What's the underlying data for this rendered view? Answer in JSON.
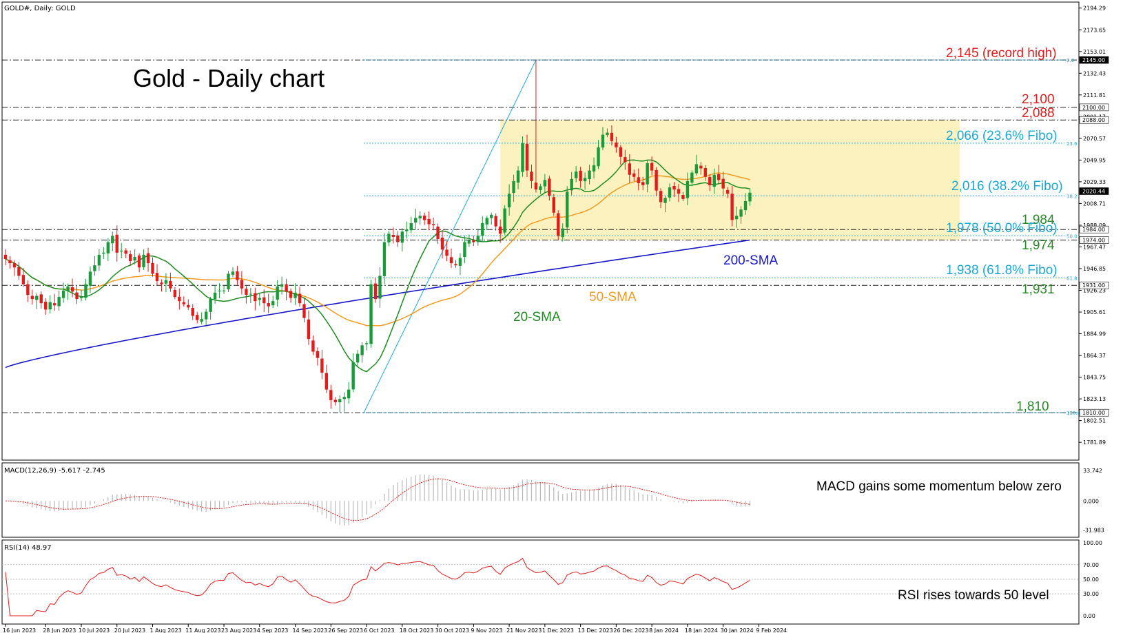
{
  "header": {
    "symbol_line": "GOLD#, Daily: GOLD",
    "macd_line": "MACD(12,26,9) -5.617 -2.745",
    "rsi_line": "RSI(14) 48.97"
  },
  "annotations": {
    "title": "Gold - Daily chart",
    "record_high": "2,145 (record high)",
    "level_2100": "2,100",
    "level_2088": "2,088",
    "fibo_236": "2,066 (23.6% Fibo)",
    "fibo_382": "2,016 (38.2% Fibo)",
    "level_1984": "1,984",
    "fibo_500": "1,978 (50.0% Fibo)",
    "level_1974": "1,974",
    "sma200": "200-SMA",
    "fibo_618": "1,938 (61.8% Fibo)",
    "level_1931": "1,931",
    "sma50": "50-SMA",
    "sma20": "20-SMA",
    "level_1810": "1,810",
    "macd_note": "MACD gains some momentum below zero",
    "rsi_note": "RSI rises towards 50 level"
  },
  "fib_tags": [
    "0.0",
    "23.6",
    "38.2",
    "50.0",
    "61.8",
    "100.0"
  ],
  "colors": {
    "bull": "#1a9a3a",
    "bear": "#e21b1b",
    "sma20": "#1e8b1e",
    "sma50": "#f39a1e",
    "sma200": "#1818c8",
    "fibo": "#1aa9d6",
    "zone": "#fbf2c0",
    "red_label": "#e21b1b",
    "green_label": "#2a8a2a",
    "cyan_label": "#1aa9d6",
    "blue_label": "#1818c8"
  },
  "chart_data": {
    "type": "candlestick",
    "price_axis": {
      "ylim": [
        1765,
        2200
      ],
      "ticks": [
        "2194.29",
        "2173.65",
        "2153.01",
        "2132.43",
        "2111.81",
        "2091.17",
        "2070.57",
        "2049.95",
        "2029.33",
        "2008.71",
        "1988.09",
        "1967.47",
        "1946.85",
        "1926.23",
        "1905.61",
        "1884.99",
        "1864.37",
        "1843.75",
        "1823.13",
        "1802.51",
        "1781.89"
      ],
      "flagged": [
        {
          "value": 2145,
          "label": "2145.00",
          "style": "dark"
        },
        {
          "value": 2100,
          "label": "2100.00",
          "style": "light"
        },
        {
          "value": 2088,
          "label": "2088.00",
          "style": "light"
        },
        {
          "value": 2020.44,
          "label": "2020.44",
          "style": "dark"
        },
        {
          "value": 1984,
          "label": "1984.00",
          "style": "light"
        },
        {
          "value": 1974,
          "label": "1974.00",
          "style": "light"
        },
        {
          "value": 1931,
          "label": "1931.00",
          "style": "light"
        },
        {
          "value": 1810,
          "label": "1810.00",
          "style": "light"
        }
      ]
    },
    "x_labels": [
      {
        "label": "16 Jun 2023",
        "index": 0
      },
      {
        "label": "28 Jun 2023",
        "index": 9
      },
      {
        "label": "10 Jul 2023",
        "index": 17
      },
      {
        "label": "20 Jul 2023",
        "index": 25
      },
      {
        "label": "1 Aug 2023",
        "index": 33
      },
      {
        "label": "11 Aug 2023",
        "index": 41
      },
      {
        "label": "23 Aug 2023",
        "index": 49
      },
      {
        "label": "4 Sep 2023",
        "index": 57
      },
      {
        "label": "14 Sep 2023",
        "index": 65
      },
      {
        "label": "26 Sep 2023",
        "index": 73
      },
      {
        "label": "6 Oct 2023",
        "index": 81
      },
      {
        "label": "18 Oct 2023",
        "index": 89
      },
      {
        "label": "30 Oct 2023",
        "index": 97
      },
      {
        "label": "9 Nov 2023",
        "index": 105
      },
      {
        "label": "21 Nov 2023",
        "index": 113
      },
      {
        "label": "1 Dec 2023",
        "index": 121
      },
      {
        "label": "13 Dec 2023",
        "index": 129
      },
      {
        "label": "26 Dec 2023",
        "index": 137
      },
      {
        "label": "8 Jan 2024",
        "index": 145
      },
      {
        "label": "18 Jan 2024",
        "index": 153
      },
      {
        "label": "30 Jan 2024",
        "index": 161
      },
      {
        "label": "9 Feb 2024",
        "index": 169
      }
    ],
    "close": [
      1956,
      1952,
      1948,
      1940,
      1932,
      1922,
      1918,
      1921,
      1914,
      1908,
      1915,
      1912,
      1920,
      1926,
      1930,
      1925,
      1918,
      1920,
      1932,
      1944,
      1950,
      1960,
      1962,
      1972,
      1978,
      1962,
      1964,
      1961,
      1954,
      1958,
      1948,
      1960,
      1952,
      1942,
      1935,
      1932,
      1936,
      1928,
      1920,
      1916,
      1913,
      1910,
      1902,
      1898,
      1899,
      1906,
      1918,
      1924,
      1926,
      1926,
      1942,
      1944,
      1936,
      1928,
      1922,
      1923,
      1916,
      1919,
      1914,
      1911,
      1916,
      1930,
      1932,
      1925,
      1919,
      1924,
      1914,
      1900,
      1880,
      1868,
      1862,
      1848,
      1832,
      1822,
      1820,
      1823,
      1825,
      1832,
      1858,
      1866,
      1874,
      1876,
      1932,
      1918,
      1940,
      1972,
      1980,
      1977,
      1972,
      1982,
      1984,
      1990,
      1995,
      1997,
      1993,
      1989,
      1988,
      1975,
      1965,
      1959,
      1952,
      1950,
      1957,
      1972,
      1974,
      1972,
      1978,
      1990,
      1995,
      1998,
      1987,
      1980,
      2004,
      2018,
      2030,
      2040,
      2066,
      2040,
      2030,
      2022,
      2025,
      2031,
      2016,
      2000,
      1978,
      1985,
      2020,
      2032,
      2039,
      2030,
      2033,
      2040,
      2045,
      2062,
      2074,
      2076,
      2068,
      2062,
      2053,
      2048,
      2036,
      2034,
      2028,
      2026,
      2047,
      2040,
      2021,
      2010,
      2014,
      2024,
      2022,
      2018,
      2013,
      2030,
      2038,
      2046,
      2042,
      2034,
      2026,
      2036,
      2031,
      2023,
      2018,
      1993,
      1997,
      2003,
      2011,
      2019
    ],
    "open_sample_note": "",
    "ranges": [
      {
        "series": "sma20",
        "from": 1950,
        "to": 2022
      },
      {
        "series": "sma50",
        "from": 1920,
        "to": 2033
      },
      {
        "series": "sma200",
        "from": 1853,
        "to": 1974
      }
    ],
    "fibo": {
      "high": 2145,
      "low": 1810,
      "levels": [
        {
          "pct": "0.0",
          "value": 2145
        },
        {
          "pct": "23.6",
          "value": 2066
        },
        {
          "pct": "38.2",
          "value": 2016
        },
        {
          "pct": "50.0",
          "value": 1978
        },
        {
          "pct": "61.8",
          "value": 1938
        },
        {
          "pct": "100.0",
          "value": 1810
        }
      ]
    },
    "macd": {
      "ylim": [
        -40,
        42
      ],
      "ticks": [
        "33.742",
        "0.000",
        "-31.983"
      ],
      "values_start": -2,
      "values_end": -5.6,
      "signal_end": -2.7
    },
    "rsi": {
      "ylim": [
        0,
        100
      ],
      "ticks": [
        "100.00",
        "70.00",
        "50.00",
        "30.00",
        "0.00"
      ],
      "last": 48.97
    }
  }
}
